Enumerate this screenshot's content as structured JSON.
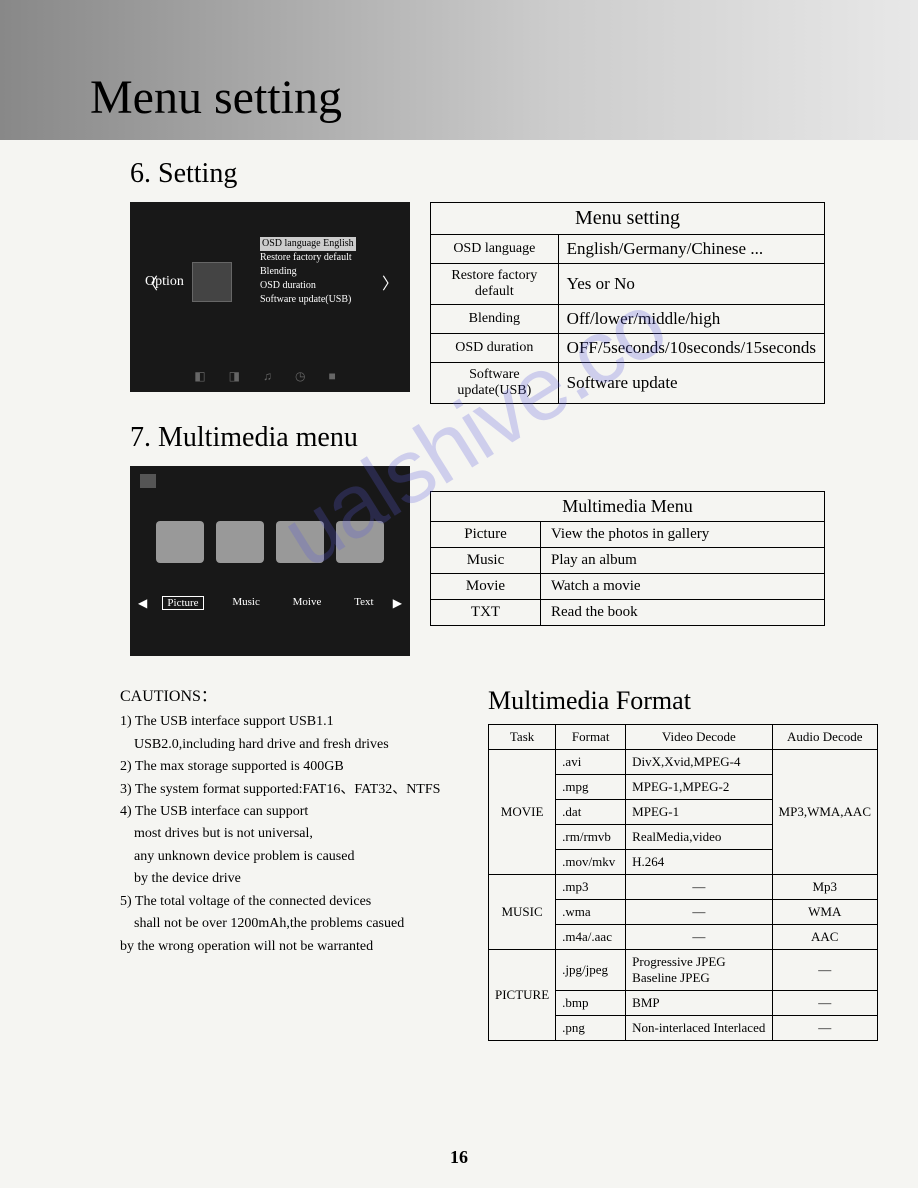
{
  "header": {
    "title": "Menu setting"
  },
  "section6": {
    "title": "6. Setting"
  },
  "screenshot_settings": {
    "option_label": "Option",
    "items": [
      "OSD language English",
      "Restore factory default",
      "Blending",
      "OSD duration",
      "Software update(USB)"
    ]
  },
  "table_settings": {
    "title": "Menu setting",
    "rows": [
      {
        "label": "OSD language",
        "value": "English/Germany/Chinese ..."
      },
      {
        "label": "Restore factory default",
        "value": "Yes or No"
      },
      {
        "label": "Blending",
        "value": "Off/lower/middle/high"
      },
      {
        "label": "OSD duration",
        "value": "OFF/5seconds/10seconds/15seconds"
      },
      {
        "label": "Software update(USB)",
        "value": "Software update"
      }
    ]
  },
  "section7": {
    "title": "7. Multimedia menu"
  },
  "screenshot_media": {
    "labels": [
      "Picture",
      "Music",
      "Moive",
      "Text"
    ]
  },
  "table_mmenu": {
    "title": "Multimedia Menu",
    "rows": [
      {
        "label": "Picture",
        "value": "View the photos in gallery"
      },
      {
        "label": "Music",
        "value": "Play  an  album"
      },
      {
        "label": "Movie",
        "value": "Watch a movie"
      },
      {
        "label": "TXT",
        "value": "Read the book"
      }
    ]
  },
  "cautions": {
    "title": "CAUTIONS：",
    "items": [
      "1) The USB interface support USB1.1",
      "USB2.0,including hard drive and fresh  drives",
      "2) The max storage supported is 400GB",
      "3) The system format supported:FAT16、FAT32、NTFS",
      "4) The USB interface can support",
      "most drives but is not universal,",
      "any unknown device problem is caused",
      "by the device drive",
      "5) The  total voltage of the connected devices",
      "shall not be over 1200mAh,the problems casued",
      "by the wrong operation will not be warranted"
    ]
  },
  "format": {
    "title": "Multimedia  Format",
    "headers": [
      "Task",
      "Format",
      "Video Decode",
      "Audio Decode"
    ],
    "movie": {
      "task": "MOVIE",
      "rows": [
        {
          "fmt": ".avi",
          "vd": "DivX,Xvid,MPEG-4"
        },
        {
          "fmt": ".mpg",
          "vd": "MPEG-1,MPEG-2"
        },
        {
          "fmt": ".dat",
          "vd": "MPEG-1"
        },
        {
          "fmt": ".rm/rmvb",
          "vd": "RealMedia,video"
        },
        {
          "fmt": ".mov/mkv",
          "vd": "H.264"
        }
      ],
      "audio": "MP3,WMA,AAC"
    },
    "music": {
      "task": "MUSIC",
      "rows": [
        {
          "fmt": ".mp3",
          "vd": "—",
          "ad": "Mp3"
        },
        {
          "fmt": ".wma",
          "vd": "—",
          "ad": "WMA"
        },
        {
          "fmt": ".m4a/.aac",
          "vd": "—",
          "ad": "AAC"
        }
      ]
    },
    "picture": {
      "task": "PICTURE",
      "rows": [
        {
          "fmt": ".jpg/jpeg",
          "vd": "Progressive JPEG Baseline JPEG",
          "ad": "—"
        },
        {
          "fmt": ".bmp",
          "vd": "BMP",
          "ad": "—"
        },
        {
          "fmt": ".png",
          "vd": "Non-interlaced Interlaced",
          "ad": "—"
        }
      ]
    }
  },
  "page_number": "16",
  "watermark": "ualshive.co"
}
